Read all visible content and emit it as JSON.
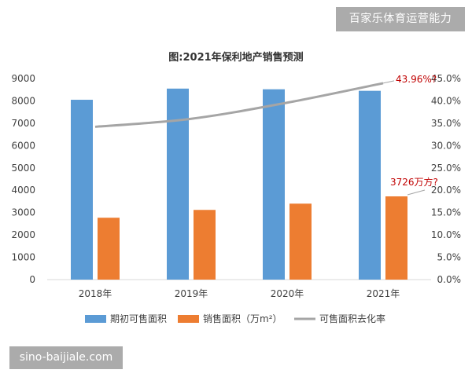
{
  "watermarks": {
    "top": "百家乐体育运营能力",
    "bottom": "sino-baijiale.com"
  },
  "colors": {
    "blue": "#5b9bd5",
    "orange": "#ed7d31",
    "gray": "#a5a5a5",
    "annotation": "#c00000"
  },
  "chart_data": {
    "type": "bar",
    "title": "图:2021年保利地产销售预测",
    "categories": [
      "2018年",
      "2019年",
      "2020年",
      "2021年"
    ],
    "series": [
      {
        "name": "期初可售面积",
        "type": "bar",
        "axis": "left",
        "values": [
          8050,
          8550,
          8520,
          8450
        ]
      },
      {
        "name": "销售面积（万m²）",
        "type": "bar",
        "axis": "left",
        "values": [
          2770,
          3120,
          3400,
          3726
        ]
      },
      {
        "name": "可售面积去化率",
        "type": "line",
        "axis": "right",
        "values": [
          34.2,
          36.0,
          39.6,
          43.96
        ]
      }
    ],
    "y_left": {
      "min": 0,
      "max": 9000,
      "step": 1000,
      "tick_labels": [
        "0",
        "1000",
        "2000",
        "3000",
        "4000",
        "5000",
        "6000",
        "7000",
        "8000",
        "9000"
      ]
    },
    "y_right": {
      "min": 0,
      "max": 45,
      "step": 5,
      "tick_labels": [
        "0.0%",
        "5.0%",
        "10.0%",
        "15.0%",
        "20.0%",
        "25.0%",
        "30.0%",
        "35.0%",
        "40.0%",
        "45.0%"
      ]
    },
    "annotations": [
      {
        "text": "43.96%?",
        "series": 2,
        "index": 3
      },
      {
        "text": "3726万方?",
        "series": 1,
        "index": 3
      }
    ],
    "legend_position": "bottom",
    "grid": false
  }
}
